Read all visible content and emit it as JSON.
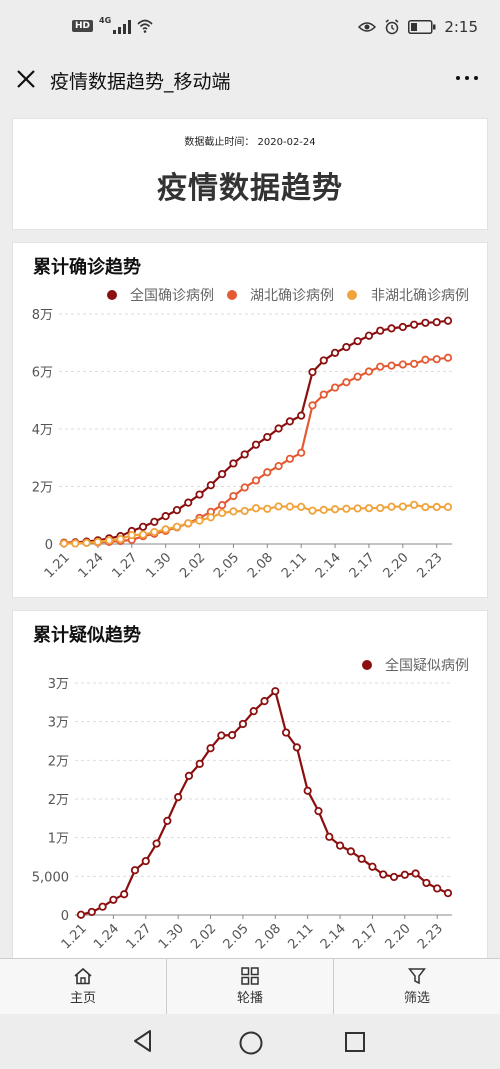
{
  "status_bar": {
    "hd": "HD",
    "network": "4G",
    "time": "2:15"
  },
  "titlebar": {
    "title": "疫情数据趋势_移动端"
  },
  "header": {
    "date_line": "数据截止时间： 2020-02-24",
    "title": "疫情数据趋势"
  },
  "chart_data": [
    {
      "type": "line",
      "title": "累计确诊趋势",
      "x": [
        "1.21",
        "1.22",
        "1.23",
        "1.24",
        "1.25",
        "1.26",
        "1.27",
        "1.28",
        "1.29",
        "1.30",
        "1.31",
        "2.01",
        "2.02",
        "2.03",
        "2.04",
        "2.05",
        "2.06",
        "2.07",
        "2.08",
        "2.09",
        "2.10",
        "2.11",
        "2.12",
        "2.13",
        "2.14",
        "2.15",
        "2.16",
        "2.17",
        "2.18",
        "2.19",
        "2.20",
        "2.21",
        "2.22",
        "2.23",
        "2.24"
      ],
      "x_tick_labels": [
        "1.21",
        "1.24",
        "1.27",
        "1.30",
        "2.02",
        "2.05",
        "2.08",
        "2.11",
        "2.14",
        "2.17",
        "2.20",
        "2.23"
      ],
      "y_tick_labels": [
        "0",
        "2万",
        "4万",
        "6万",
        "8万"
      ],
      "ylim": [
        0,
        80000
      ],
      "grid": true,
      "legend_position": "top-right",
      "series": [
        {
          "name": "全国确诊病例",
          "color": "#8b0f0f",
          "values": [
            440,
            570,
            830,
            1290,
            1980,
            2740,
            4520,
            5980,
            7710,
            9690,
            11790,
            14380,
            17200,
            20440,
            24320,
            28020,
            31160,
            34550,
            37200,
            40170,
            42640,
            44650,
            59800,
            63850,
            66490,
            68500,
            70550,
            72440,
            74190,
            75000,
            75470,
            76290,
            76940,
            77150,
            77660
          ]
        },
        {
          "name": "湖北确诊病例",
          "color": "#e45a33",
          "values": [
            270,
            375,
            444,
            549,
            729,
            1052,
            1423,
            2714,
            3554,
            4586,
            5806,
            7153,
            9074,
            11177,
            13522,
            16678,
            19665,
            22112,
            24953,
            27100,
            29631,
            31728,
            48206,
            51986,
            54406,
            56249,
            58182,
            59989,
            61682,
            62031,
            62442,
            62662,
            64084,
            64287,
            64786
          ]
        },
        {
          "name": "非湖北确诊病例",
          "color": "#f0a33b",
          "values": [
            170,
            195,
            386,
            741,
            1251,
            1688,
            3097,
            3266,
            4156,
            5104,
            5984,
            7227,
            8126,
            9263,
            10798,
            11342,
            11495,
            12438,
            12247,
            13070,
            13009,
            12922,
            11594,
            11864,
            12084,
            12251,
            12368,
            12451,
            12508,
            12969,
            13028,
            13628,
            12856,
            12863,
            12874
          ]
        }
      ]
    },
    {
      "type": "line",
      "title": "累计疑似趋势",
      "x": [
        "1.21",
        "1.22",
        "1.23",
        "1.24",
        "1.25",
        "1.26",
        "1.27",
        "1.28",
        "1.29",
        "1.30",
        "1.31",
        "2.01",
        "2.02",
        "2.03",
        "2.04",
        "2.05",
        "2.06",
        "2.07",
        "2.08",
        "2.09",
        "2.10",
        "2.11",
        "2.12",
        "2.13",
        "2.14",
        "2.15",
        "2.16",
        "2.17",
        "2.18",
        "2.19",
        "2.20",
        "2.21",
        "2.22",
        "2.23",
        "2.24"
      ],
      "x_tick_labels": [
        "1.21",
        "1.24",
        "1.27",
        "1.30",
        "2.02",
        "2.05",
        "2.08",
        "2.11",
        "2.14",
        "2.17",
        "2.20",
        "2.23"
      ],
      "y_tick_labels": [
        "0",
        "5,000",
        "1万",
        "2万",
        "2万",
        "3万",
        "3万"
      ],
      "ylim": [
        0,
        30000
      ],
      "grid": true,
      "legend_position": "top-right",
      "series": [
        {
          "name": "全国疑似病例",
          "color": "#8b0f0f",
          "values": [
            37,
            393,
            1072,
            1965,
            2684,
            5794,
            6973,
            9239,
            12167,
            15238,
            17988,
            19544,
            21558,
            23214,
            23260,
            24702,
            26359,
            27657,
            28942,
            23589,
            21675,
            16067,
            13435,
            10109,
            8969,
            8228,
            7264,
            6242,
            5248,
            4922,
            5206,
            5365,
            4148,
            3434,
            2824
          ]
        }
      ]
    }
  ],
  "tabbar": {
    "tabs": [
      {
        "label": "主页"
      },
      {
        "label": "轮播"
      },
      {
        "label": "筛选"
      }
    ]
  }
}
